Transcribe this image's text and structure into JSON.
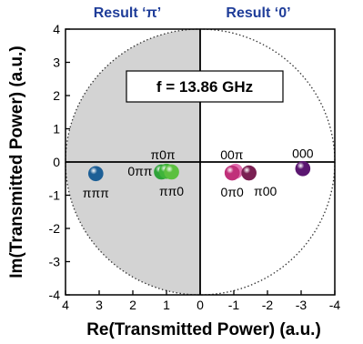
{
  "chart_data": {
    "type": "scatter",
    "title": "",
    "xlabel": "Re(Transmitted Power) (a.u.)",
    "ylabel": "Im(Transmitted Power) (a.u.)",
    "xlim": [
      4,
      -4
    ],
    "ylim": [
      -4,
      4
    ],
    "x_reversed": true,
    "x_ticks": [
      "4",
      "3",
      "2",
      "1",
      "0",
      "-1",
      "-2",
      "-3",
      "-4"
    ],
    "y_ticks": [
      "4",
      "3",
      "2",
      "1",
      "0",
      "-1",
      "-2",
      "-3",
      "-4"
    ],
    "grid": false,
    "annotation": "f = 13.86 GHz",
    "region_labels": [
      {
        "text": "Result ‘π’",
        "side": "left",
        "color": "#1f3d99"
      },
      {
        "text": "Result ‘0’",
        "side": "right",
        "color": "#1f3d99"
      }
    ],
    "shaded_region": {
      "from_x": 4,
      "to_x": 0,
      "color": "#d3d3d3"
    },
    "circle_radius": 4,
    "points": [
      {
        "label": "πππ",
        "x": 3.1,
        "y": -0.35,
        "color": "#1d5f96"
      },
      {
        "label": "0ππ",
        "x": 1.15,
        "y": -0.3,
        "color": "#2fa33a"
      },
      {
        "label": "π0π",
        "x": 1.0,
        "y": -0.28,
        "color": "#3fb43a"
      },
      {
        "label": "ππ0",
        "x": 0.85,
        "y": -0.3,
        "color": "#5cc03f"
      },
      {
        "label": "00π",
        "x": -1.05,
        "y": -0.28,
        "color": "#e26fb0"
      },
      {
        "label": "0π0",
        "x": -0.95,
        "y": -0.33,
        "color": "#c0307a"
      },
      {
        "label": "π00",
        "x": -1.45,
        "y": -0.33,
        "color": "#7a1f52"
      },
      {
        "label": "000",
        "x": -3.05,
        "y": -0.2,
        "color": "#5a1670"
      }
    ]
  }
}
